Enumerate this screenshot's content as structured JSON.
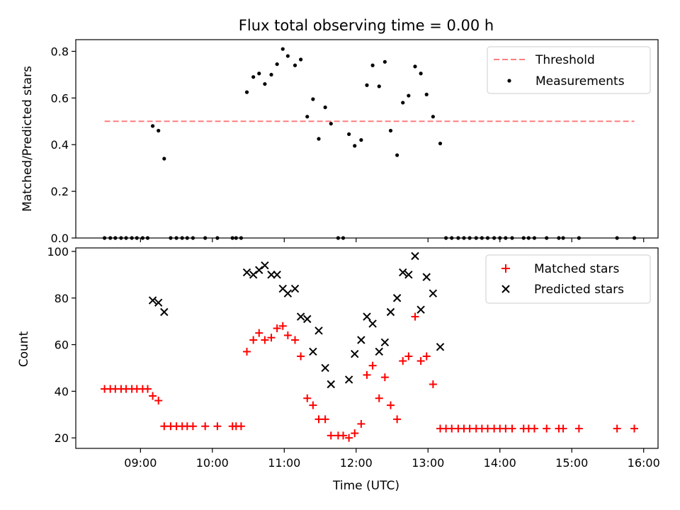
{
  "chart_data": [
    {
      "type": "scatter",
      "title": "Flux total observing time = 0.00 h",
      "ylabel": "Matched/Predicted stars",
      "xlabel": "",
      "xlim": [
        8.1,
        16.2
      ],
      "ylim": [
        0,
        0.85
      ],
      "yticks": [
        0.0,
        0.2,
        0.4,
        0.6,
        0.8
      ],
      "ytick_labels": [
        "0.0",
        "0.2",
        "0.4",
        "0.6",
        "0.8"
      ],
      "xticks": [
        9,
        10,
        11,
        12,
        13,
        14,
        15,
        16
      ],
      "grid": false,
      "legend": "top-right",
      "threshold": {
        "name": "Threshold",
        "value": 0.5,
        "x_start": 8.5,
        "x_end": 15.87,
        "color": "#ff7f7f",
        "style": "dashed"
      },
      "series": [
        {
          "name": "Measurements",
          "marker": "dot",
          "color": "#000000",
          "points": [
            [
              8.5,
              0
            ],
            [
              8.58,
              0
            ],
            [
              8.65,
              0
            ],
            [
              8.73,
              0
            ],
            [
              8.8,
              0
            ],
            [
              8.88,
              0
            ],
            [
              8.95,
              0
            ],
            [
              9.03,
              0
            ],
            [
              9.1,
              0
            ],
            [
              9.17,
              0.48
            ],
            [
              9.25,
              0.46
            ],
            [
              9.33,
              0.34
            ],
            [
              9.42,
              0
            ],
            [
              9.5,
              0
            ],
            [
              9.58,
              0
            ],
            [
              9.65,
              0
            ],
            [
              9.73,
              0
            ],
            [
              9.9,
              0
            ],
            [
              10.07,
              0
            ],
            [
              10.28,
              0
            ],
            [
              10.33,
              0
            ],
            [
              10.4,
              0
            ],
            [
              10.48,
              0.625
            ],
            [
              10.57,
              0.69
            ],
            [
              10.65,
              0.705
            ],
            [
              10.73,
              0.66
            ],
            [
              10.82,
              0.7
            ],
            [
              10.9,
              0.745
            ],
            [
              10.98,
              0.81
            ],
            [
              11.05,
              0.78
            ],
            [
              11.15,
              0.74
            ],
            [
              11.23,
              0.765
            ],
            [
              11.32,
              0.52
            ],
            [
              11.4,
              0.595
            ],
            [
              11.48,
              0.425
            ],
            [
              11.57,
              0.56
            ],
            [
              11.65,
              0.49
            ],
            [
              11.75,
              0
            ],
            [
              11.82,
              0
            ],
            [
              11.9,
              0.445
            ],
            [
              11.98,
              0.395
            ],
            [
              12.07,
              0.42
            ],
            [
              12.15,
              0.655
            ],
            [
              12.23,
              0.74
            ],
            [
              12.32,
              0.65
            ],
            [
              12.4,
              0.755
            ],
            [
              12.48,
              0.46
            ],
            [
              12.57,
              0.355
            ],
            [
              12.65,
              0.58
            ],
            [
              12.73,
              0.61
            ],
            [
              12.82,
              0.735
            ],
            [
              12.9,
              0.705
            ],
            [
              12.98,
              0.615
            ],
            [
              13.07,
              0.52
            ],
            [
              13.17,
              0.405
            ],
            [
              13.25,
              0
            ],
            [
              13.33,
              0
            ],
            [
              13.42,
              0
            ],
            [
              13.5,
              0
            ],
            [
              13.58,
              0
            ],
            [
              13.67,
              0
            ],
            [
              13.75,
              0
            ],
            [
              13.83,
              0
            ],
            [
              13.92,
              0
            ],
            [
              14.0,
              0
            ],
            [
              14.08,
              0
            ],
            [
              14.17,
              0
            ],
            [
              14.33,
              0
            ],
            [
              14.4,
              0
            ],
            [
              14.48,
              0
            ],
            [
              14.65,
              0
            ],
            [
              14.82,
              0
            ],
            [
              14.88,
              0
            ],
            [
              15.1,
              0
            ],
            [
              15.63,
              0
            ],
            [
              15.87,
              0
            ]
          ]
        }
      ]
    },
    {
      "type": "scatter",
      "title": "",
      "ylabel": "Count",
      "xlabel": "Time (UTC)",
      "xlim": [
        8.1,
        16.2
      ],
      "ylim": [
        15.5,
        101.5
      ],
      "yticks": [
        20,
        40,
        60,
        80,
        100
      ],
      "ytick_labels": [
        "20",
        "40",
        "60",
        "80",
        "100"
      ],
      "xticks": [
        9,
        10,
        11,
        12,
        13,
        14,
        15,
        16
      ],
      "xtick_labels": [
        "09:00",
        "10:00",
        "11:00",
        "12:00",
        "13:00",
        "14:00",
        "15:00",
        "16:00"
      ],
      "grid": false,
      "legend": "top-right",
      "series": [
        {
          "name": "Matched stars",
          "marker": "plus",
          "color": "#ff0000",
          "points": [
            [
              8.5,
              41
            ],
            [
              8.58,
              41
            ],
            [
              8.65,
              41
            ],
            [
              8.73,
              41
            ],
            [
              8.8,
              41
            ],
            [
              8.88,
              41
            ],
            [
              8.95,
              41
            ],
            [
              9.03,
              41
            ],
            [
              9.1,
              41
            ],
            [
              9.17,
              38
            ],
            [
              9.25,
              36
            ],
            [
              9.33,
              25
            ],
            [
              9.42,
              25
            ],
            [
              9.5,
              25
            ],
            [
              9.58,
              25
            ],
            [
              9.65,
              25
            ],
            [
              9.73,
              25
            ],
            [
              9.9,
              25
            ],
            [
              10.07,
              25
            ],
            [
              10.28,
              25
            ],
            [
              10.33,
              25
            ],
            [
              10.4,
              25
            ],
            [
              10.48,
              57
            ],
            [
              10.57,
              62
            ],
            [
              10.65,
              65
            ],
            [
              10.73,
              62
            ],
            [
              10.82,
              63
            ],
            [
              10.9,
              67
            ],
            [
              10.98,
              68
            ],
            [
              11.05,
              64
            ],
            [
              11.15,
              62
            ],
            [
              11.23,
              55
            ],
            [
              11.32,
              37
            ],
            [
              11.4,
              34
            ],
            [
              11.48,
              28
            ],
            [
              11.57,
              28
            ],
            [
              11.65,
              21
            ],
            [
              11.75,
              21
            ],
            [
              11.82,
              21
            ],
            [
              11.9,
              20
            ],
            [
              11.98,
              22
            ],
            [
              12.07,
              26
            ],
            [
              12.15,
              47
            ],
            [
              12.23,
              51
            ],
            [
              12.32,
              37
            ],
            [
              12.4,
              46
            ],
            [
              12.48,
              34
            ],
            [
              12.57,
              28
            ],
            [
              12.65,
              53
            ],
            [
              12.73,
              55
            ],
            [
              12.82,
              72
            ],
            [
              12.9,
              53
            ],
            [
              12.98,
              55
            ],
            [
              13.07,
              43
            ],
            [
              13.17,
              24
            ],
            [
              13.25,
              24
            ],
            [
              13.33,
              24
            ],
            [
              13.42,
              24
            ],
            [
              13.5,
              24
            ],
            [
              13.58,
              24
            ],
            [
              13.67,
              24
            ],
            [
              13.75,
              24
            ],
            [
              13.83,
              24
            ],
            [
              13.92,
              24
            ],
            [
              14.0,
              24
            ],
            [
              14.08,
              24
            ],
            [
              14.17,
              24
            ],
            [
              14.33,
              24
            ],
            [
              14.4,
              24
            ],
            [
              14.48,
              24
            ],
            [
              14.65,
              24
            ],
            [
              14.82,
              24
            ],
            [
              14.88,
              24
            ],
            [
              15.1,
              24
            ],
            [
              15.63,
              24
            ],
            [
              15.87,
              24
            ]
          ]
        },
        {
          "name": "Predicted stars",
          "marker": "x",
          "color": "#000000",
          "points": [
            [
              9.17,
              79
            ],
            [
              9.25,
              78
            ],
            [
              9.33,
              74
            ],
            [
              10.48,
              91
            ],
            [
              10.57,
              90
            ],
            [
              10.65,
              92
            ],
            [
              10.73,
              94
            ],
            [
              10.82,
              90
            ],
            [
              10.9,
              90
            ],
            [
              10.98,
              84
            ],
            [
              11.05,
              82
            ],
            [
              11.15,
              84
            ],
            [
              11.23,
              72
            ],
            [
              11.32,
              71
            ],
            [
              11.4,
              57
            ],
            [
              11.48,
              66
            ],
            [
              11.57,
              50
            ],
            [
              11.65,
              43
            ],
            [
              11.9,
              45
            ],
            [
              11.98,
              56
            ],
            [
              12.07,
              62
            ],
            [
              12.15,
              72
            ],
            [
              12.23,
              69
            ],
            [
              12.32,
              57
            ],
            [
              12.4,
              61
            ],
            [
              12.48,
              74
            ],
            [
              12.57,
              80
            ],
            [
              12.65,
              91
            ],
            [
              12.73,
              90
            ],
            [
              12.82,
              98
            ],
            [
              12.9,
              75
            ],
            [
              12.98,
              89
            ],
            [
              13.07,
              82
            ],
            [
              13.17,
              59
            ]
          ]
        }
      ]
    }
  ]
}
